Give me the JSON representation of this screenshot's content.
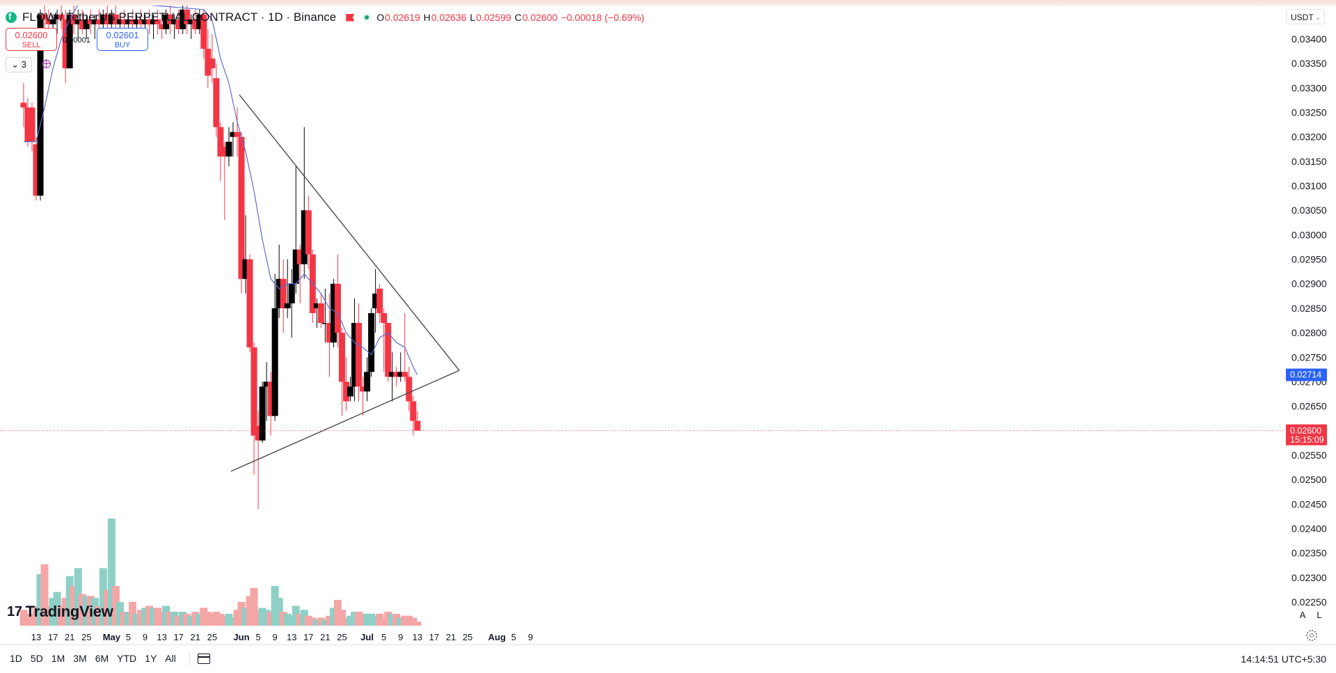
{
  "header": {
    "symbol": "FLOW / TetherUS PERPETUAL CONTRACT · 1D · Binance",
    "ohlc": {
      "o_label": "O",
      "o": "0.02619",
      "h_label": "H",
      "h": "0.02636",
      "l_label": "L",
      "l": "0.02599",
      "c_label": "C",
      "c": "0.02600",
      "change": "−0.00018 (−0.69%)"
    }
  },
  "trade": {
    "sell_price": "0.02600",
    "sell_label": "SELL",
    "spread": "0.00001",
    "buy_price": "0.02601",
    "buy_label": "BUY"
  },
  "indicator_count": "3",
  "currency": "USDT",
  "watermark": "TradingView",
  "axis_buttons": {
    "auto": "A",
    "log": "L"
  },
  "ranges": [
    "1D",
    "5D",
    "1M",
    "3M",
    "6M",
    "YTD",
    "1Y",
    "All"
  ],
  "clock": "14:14:51 UTC+5:30",
  "colors": {
    "up": "#000000",
    "down": "#f23645",
    "vol_up": "#8ecfc6",
    "vol_down": "#f4a6a6",
    "ma": "#5b6bd4"
  },
  "chart_data": {
    "type": "candlestick",
    "timeframe": "1D",
    "ylim": [
      0.0222,
      0.0343
    ],
    "y_ticks": [
      "0.02250",
      "0.02300",
      "0.02350",
      "0.02400",
      "0.02450",
      "0.02500",
      "0.02550",
      "0.02600",
      "0.02650",
      "0.02700",
      "0.02750",
      "0.02800",
      "0.02850",
      "0.02900",
      "0.02950",
      "0.03000",
      "0.03050",
      "0.03100",
      "0.03150",
      "0.03200",
      "0.03250",
      "0.03300",
      "0.03350",
      "0.03400"
    ],
    "x_ticks": [
      {
        "day": 0,
        "label": "13"
      },
      {
        "day": 4,
        "label": "17"
      },
      {
        "day": 8,
        "label": "21"
      },
      {
        "day": 12,
        "label": "25"
      },
      {
        "day": 18,
        "label": "May"
      },
      {
        "day": 22,
        "label": "5"
      },
      {
        "day": 26,
        "label": "9"
      },
      {
        "day": 30,
        "label": "13"
      },
      {
        "day": 34,
        "label": "17"
      },
      {
        "day": 38,
        "label": "21"
      },
      {
        "day": 42,
        "label": "25"
      },
      {
        "day": 49,
        "label": "Jun"
      },
      {
        "day": 53,
        "label": "5"
      },
      {
        "day": 57,
        "label": "9"
      },
      {
        "day": 61,
        "label": "13"
      },
      {
        "day": 65,
        "label": "17"
      },
      {
        "day": 69,
        "label": "21"
      },
      {
        "day": 73,
        "label": "25"
      },
      {
        "day": 79,
        "label": "Jul"
      },
      {
        "day": 83,
        "label": "5"
      },
      {
        "day": 87,
        "label": "9"
      },
      {
        "day": 91,
        "label": "13"
      },
      {
        "day": 95,
        "label": "17"
      },
      {
        "day": 99,
        "label": "21"
      },
      {
        "day": 103,
        "label": "25"
      },
      {
        "day": 110,
        "label": "Aug"
      },
      {
        "day": 114,
        "label": "5"
      },
      {
        "day": 118,
        "label": "9"
      }
    ],
    "candles": [
      {
        "d": -3,
        "o": 0.0327,
        "h": 0.0331,
        "l": 0.0322,
        "c": 0.0326,
        "v": 4
      },
      {
        "d": -2,
        "o": 0.0326,
        "h": 0.0328,
        "l": 0.0318,
        "c": 0.0319,
        "v": 3
      },
      {
        "d": -1,
        "o": 0.0326,
        "h": 0.0327,
        "l": 0.0317,
        "c": 0.0319,
        "v": 3
      },
      {
        "d": 0,
        "o": 0.03185,
        "h": 0.032,
        "l": 0.0307,
        "c": 0.0308,
        "v": 5
      },
      {
        "d": 1,
        "o": 0.0308,
        "h": 0.0346,
        "l": 0.0307,
        "c": 0.0345,
        "v": 13
      },
      {
        "d": 2,
        "o": 0.0345,
        "h": 0.035,
        "l": 0.034,
        "c": 0.0344,
        "v": 15.5
      },
      {
        "d": 3,
        "o": 0.0344,
        "h": 0.0346,
        "l": 0.034,
        "c": 0.0343,
        "v": 5
      },
      {
        "d": 4,
        "o": 0.0343,
        "h": 0.0345,
        "l": 0.034,
        "c": 0.0344,
        "v": 7
      },
      {
        "d": 5,
        "o": 0.0344,
        "h": 0.0346,
        "l": 0.0341,
        "c": 0.0345,
        "v": 8.5
      },
      {
        "d": 6,
        "o": 0.0345,
        "h": 0.0347,
        "l": 0.0342,
        "c": 0.0344,
        "v": 5
      },
      {
        "d": 7,
        "o": 0.0344,
        "h": 0.0346,
        "l": 0.0331,
        "c": 0.0334,
        "v": 7
      },
      {
        "d": 8,
        "o": 0.0334,
        "h": 0.0346,
        "l": 0.0334,
        "c": 0.0345,
        "v": 12.5
      },
      {
        "d": 9,
        "o": 0.0345,
        "h": 0.0347,
        "l": 0.0341,
        "c": 0.0343,
        "v": 10
      },
      {
        "d": 10,
        "o": 0.0343,
        "h": 0.0346,
        "l": 0.034,
        "c": 0.0344,
        "v": 14.5
      },
      {
        "d": 11,
        "o": 0.0344,
        "h": 0.0346,
        "l": 0.0341,
        "c": 0.0342,
        "v": 8
      },
      {
        "d": 12,
        "o": 0.0342,
        "h": 0.0345,
        "l": 0.034,
        "c": 0.0344,
        "v": 7.5
      },
      {
        "d": 13,
        "o": 0.0344,
        "h": 0.0346,
        "l": 0.0341,
        "c": 0.0343,
        "v": 7.5
      },
      {
        "d": 14,
        "o": 0.0343,
        "h": 0.0345,
        "l": 0.034,
        "c": 0.0344,
        "v": 7
      },
      {
        "d": 15,
        "o": 0.0344,
        "h": 0.0346,
        "l": 0.0341,
        "c": 0.0343,
        "v": 5
      },
      {
        "d": 16,
        "o": 0.0343,
        "h": 0.0346,
        "l": 0.034,
        "c": 0.0345,
        "v": 14.5
      },
      {
        "d": 17,
        "o": 0.0345,
        "h": 0.0347,
        "l": 0.0341,
        "c": 0.0343,
        "v": 9
      },
      {
        "d": 18,
        "o": 0.0343,
        "h": 0.0346,
        "l": 0.034,
        "c": 0.0345,
        "v": 27
      },
      {
        "d": 19,
        "o": 0.0345,
        "h": 0.0347,
        "l": 0.0341,
        "c": 0.0343,
        "v": 10
      },
      {
        "d": 20,
        "o": 0.0343,
        "h": 0.0345,
        "l": 0.034,
        "c": 0.0344,
        "v": 6
      },
      {
        "d": 21,
        "o": 0.0344,
        "h": 0.0346,
        "l": 0.0341,
        "c": 0.0343,
        "v": 3.5
      },
      {
        "d": 22,
        "o": 0.0343,
        "h": 0.0345,
        "l": 0.034,
        "c": 0.0344,
        "v": 3.5
      },
      {
        "d": 23,
        "o": 0.0344,
        "h": 0.0346,
        "l": 0.0341,
        "c": 0.0343,
        "v": 6
      },
      {
        "d": 24,
        "o": 0.0343,
        "h": 0.0345,
        "l": 0.034,
        "c": 0.0344,
        "v": 3
      },
      {
        "d": 25,
        "o": 0.0344,
        "h": 0.0346,
        "l": 0.0341,
        "c": 0.0343,
        "v": 4
      },
      {
        "d": 26,
        "o": 0.0343,
        "h": 0.0345,
        "l": 0.034,
        "c": 0.0344,
        "v": 4.5
      },
      {
        "d": 27,
        "o": 0.0344,
        "h": 0.0346,
        "l": 0.0341,
        "c": 0.0343,
        "v": 5
      },
      {
        "d": 28,
        "o": 0.0343,
        "h": 0.0345,
        "l": 0.034,
        "c": 0.0344,
        "v": 4.5
      },
      {
        "d": 29,
        "o": 0.0344,
        "h": 0.0346,
        "l": 0.0341,
        "c": 0.0343,
        "v": 4.5
      },
      {
        "d": 30,
        "o": 0.0343,
        "h": 0.0345,
        "l": 0.034,
        "c": 0.0342,
        "v": 3.5
      },
      {
        "d": 31,
        "o": 0.0342,
        "h": 0.0346,
        "l": 0.0341,
        "c": 0.0345,
        "v": 5
      },
      {
        "d": 32,
        "o": 0.0345,
        "h": 0.0347,
        "l": 0.0341,
        "c": 0.0343,
        "v": 3.5
      },
      {
        "d": 33,
        "o": 0.0343,
        "h": 0.0345,
        "l": 0.034,
        "c": 0.0344,
        "v": 3.5
      },
      {
        "d": 34,
        "o": 0.0344,
        "h": 0.0346,
        "l": 0.0341,
        "c": 0.0342,
        "v": 2.5
      },
      {
        "d": 35,
        "o": 0.0342,
        "h": 0.0348,
        "l": 0.0341,
        "c": 0.0346,
        "v": 3.5
      },
      {
        "d": 36,
        "o": 0.0346,
        "h": 0.0348,
        "l": 0.0341,
        "c": 0.0343,
        "v": 3
      },
      {
        "d": 37,
        "o": 0.0343,
        "h": 0.0345,
        "l": 0.034,
        "c": 0.0344,
        "v": 2.5
      },
      {
        "d": 38,
        "o": 0.0344,
        "h": 0.0346,
        "l": 0.0341,
        "c": 0.0342,
        "v": 3.5
      },
      {
        "d": 39,
        "o": 0.0342,
        "h": 0.0346,
        "l": 0.0341,
        "c": 0.0345,
        "v": 3
      },
      {
        "d": 40,
        "o": 0.0345,
        "h": 0.0346,
        "l": 0.0336,
        "c": 0.0338,
        "v": 4.5
      },
      {
        "d": 41,
        "o": 0.0338,
        "h": 0.0342,
        "l": 0.033,
        "c": 0.03325,
        "v": 3.5
      },
      {
        "d": 42,
        "o": 0.0336,
        "h": 0.0341,
        "l": 0.0331,
        "c": 0.0334,
        "v": 3
      },
      {
        "d": 43,
        "o": 0.0332,
        "h": 0.0335,
        "l": 0.032,
        "c": 0.0322,
        "v": 3.5
      },
      {
        "d": 44,
        "o": 0.0322,
        "h": 0.0323,
        "l": 0.0311,
        "c": 0.0316,
        "v": 3
      },
      {
        "d": 45,
        "o": 0.0318,
        "h": 0.0319,
        "l": 0.0303,
        "c": 0.0316,
        "v": 2.5
      },
      {
        "d": 46,
        "o": 0.0316,
        "h": 0.0322,
        "l": 0.0314,
        "c": 0.0319,
        "v": 3
      },
      {
        "d": 47,
        "o": 0.032,
        "h": 0.0323,
        "l": 0.0316,
        "c": 0.0321,
        "v": 2
      },
      {
        "d": 48,
        "o": 0.0321,
        "h": 0.0326,
        "l": 0.0316,
        "c": 0.032,
        "v": 4
      },
      {
        "d": 49,
        "o": 0.032,
        "h": 0.0321,
        "l": 0.0288,
        "c": 0.0291,
        "v": 6
      },
      {
        "d": 50,
        "o": 0.0291,
        "h": 0.0304,
        "l": 0.0288,
        "c": 0.0295,
        "v": 4.5
      },
      {
        "d": 51,
        "o": 0.0295,
        "h": 0.0296,
        "l": 0.0276,
        "c": 0.0277,
        "v": 7.5
      },
      {
        "d": 52,
        "o": 0.0277,
        "h": 0.0278,
        "l": 0.0251,
        "c": 0.0259,
        "v": 9.5
      },
      {
        "d": 53,
        "o": 0.0261,
        "h": 0.0264,
        "l": 0.0244,
        "c": 0.0258,
        "v": 4
      },
      {
        "d": 54,
        "o": 0.0258,
        "h": 0.027,
        "l": 0.02575,
        "c": 0.0269,
        "v": 4.5
      },
      {
        "d": 55,
        "o": 0.0269,
        "h": 0.0274,
        "l": 0.0262,
        "c": 0.027,
        "v": 4
      },
      {
        "d": 56,
        "o": 0.027,
        "h": 0.0272,
        "l": 0.0259,
        "c": 0.0263,
        "v": 3.5
      },
      {
        "d": 57,
        "o": 0.0263,
        "h": 0.0292,
        "l": 0.0262,
        "c": 0.0285,
        "v": 10
      },
      {
        "d": 58,
        "o": 0.0285,
        "h": 0.0298,
        "l": 0.0283,
        "c": 0.0291,
        "v": 7
      },
      {
        "d": 59,
        "o": 0.0291,
        "h": 0.0295,
        "l": 0.028,
        "c": 0.0285,
        "v": 3.5
      },
      {
        "d": 60,
        "o": 0.0285,
        "h": 0.0295,
        "l": 0.0283,
        "c": 0.0286,
        "v": 3
      },
      {
        "d": 61,
        "o": 0.0286,
        "h": 0.0293,
        "l": 0.0279,
        "c": 0.029,
        "v": 2.5
      },
      {
        "d": 62,
        "o": 0.029,
        "h": 0.0314,
        "l": 0.0288,
        "c": 0.0297,
        "v": 5
      },
      {
        "d": 63,
        "o": 0.0297,
        "h": 0.0298,
        "l": 0.0286,
        "c": 0.0294,
        "v": 3
      },
      {
        "d": 64,
        "o": 0.0294,
        "h": 0.0322,
        "l": 0.0291,
        "c": 0.0305,
        "v": 4
      },
      {
        "d": 65,
        "o": 0.0305,
        "h": 0.0308,
        "l": 0.0293,
        "c": 0.0296,
        "v": 2.5
      },
      {
        "d": 66,
        "o": 0.0296,
        "h": 0.0297,
        "l": 0.0282,
        "c": 0.0284,
        "v": 2
      },
      {
        "d": 67,
        "o": 0.0285,
        "h": 0.0287,
        "l": 0.0281,
        "c": 0.0286,
        "v": 1.5
      },
      {
        "d": 68,
        "o": 0.0286,
        "h": 0.0288,
        "l": 0.0281,
        "c": 0.0282,
        "v": 2
      },
      {
        "d": 69,
        "o": 0.0282,
        "h": 0.0289,
        "l": 0.0278,
        "c": 0.0282,
        "v": 1.5
      },
      {
        "d": 70,
        "o": 0.0282,
        "h": 0.0288,
        "l": 0.0271,
        "c": 0.0278,
        "v": 2.5
      },
      {
        "d": 71,
        "o": 0.0278,
        "h": 0.0291,
        "l": 0.0277,
        "c": 0.029,
        "v": 4.5
      },
      {
        "d": 72,
        "o": 0.029,
        "h": 0.0296,
        "l": 0.0277,
        "c": 0.028,
        "v": 6.5
      },
      {
        "d": 73,
        "o": 0.028,
        "h": 0.0281,
        "l": 0.0263,
        "c": 0.027,
        "v": 4
      },
      {
        "d": 74,
        "o": 0.027,
        "h": 0.0275,
        "l": 0.0264,
        "c": 0.0266,
        "v": 2
      },
      {
        "d": 75,
        "o": 0.0267,
        "h": 0.0271,
        "l": 0.0266,
        "c": 0.0269,
        "v": 2.5
      },
      {
        "d": 76,
        "o": 0.0269,
        "h": 0.0287,
        "l": 0.0266,
        "c": 0.0282,
        "v": 3.5
      },
      {
        "d": 77,
        "o": 0.0282,
        "h": 0.0286,
        "l": 0.0266,
        "c": 0.0269,
        "v": 3.5
      },
      {
        "d": 78,
        "o": 0.0269,
        "h": 0.0271,
        "l": 0.0263,
        "c": 0.0268,
        "v": 3
      },
      {
        "d": 79,
        "o": 0.0268,
        "h": 0.0275,
        "l": 0.0266,
        "c": 0.0272,
        "v": 3
      },
      {
        "d": 80,
        "o": 0.0272,
        "h": 0.0285,
        "l": 0.0271,
        "c": 0.0284,
        "v": 3
      },
      {
        "d": 81,
        "o": 0.0285,
        "h": 0.0293,
        "l": 0.028,
        "c": 0.0288,
        "v": 2.5
      },
      {
        "d": 82,
        "o": 0.0289,
        "h": 0.029,
        "l": 0.0282,
        "c": 0.0284,
        "v": 3
      },
      {
        "d": 83,
        "o": 0.0284,
        "h": 0.0285,
        "l": 0.0272,
        "c": 0.0282,
        "v": 2
      },
      {
        "d": 84,
        "o": 0.0282,
        "h": 0.0282,
        "l": 0.027,
        "c": 0.0271,
        "v": 3.5
      },
      {
        "d": 85,
        "o": 0.0271,
        "h": 0.0276,
        "l": 0.0266,
        "c": 0.0272,
        "v": 3
      },
      {
        "d": 86,
        "o": 0.0272,
        "h": 0.0273,
        "l": 0.0269,
        "c": 0.0271,
        "v": 3
      },
      {
        "d": 87,
        "o": 0.0271,
        "h": 0.0276,
        "l": 0.027,
        "c": 0.0272,
        "v": 2
      },
      {
        "d": 88,
        "o": 0.0272,
        "h": 0.0284,
        "l": 0.027,
        "c": 0.0271,
        "v": 2.5
      },
      {
        "d": 89,
        "o": 0.0271,
        "h": 0.0273,
        "l": 0.0264,
        "c": 0.0266,
        "v": 2.5
      },
      {
        "d": 90,
        "o": 0.0266,
        "h": 0.0267,
        "l": 0.0259,
        "c": 0.0262,
        "v": 2
      },
      {
        "d": 91,
        "o": 0.0262,
        "h": 0.0264,
        "l": 0.026,
        "c": 0.026,
        "v": 1
      }
    ],
    "moving_average": {
      "name": "",
      "points": [
        [
          -3,
          0.0319
        ],
        [
          0,
          0.0319
        ],
        [
          2,
          0.0326
        ],
        [
          4,
          0.0334
        ],
        [
          6,
          0.034
        ],
        [
          8,
          0.0344
        ],
        [
          10,
          0.0347
        ],
        [
          12,
          0.0348
        ],
        [
          40,
          0.0346
        ],
        [
          42,
          0.0344
        ],
        [
          44,
          0.0336
        ],
        [
          46,
          0.0331
        ],
        [
          48,
          0.0323
        ],
        [
          50,
          0.0317
        ],
        [
          52,
          0.0309
        ],
        [
          54,
          0.0299
        ],
        [
          56,
          0.0291
        ],
        [
          58,
          0.0289
        ],
        [
          60,
          0.029
        ],
        [
          62,
          0.029
        ],
        [
          64,
          0.0292
        ],
        [
          66,
          0.029
        ],
        [
          68,
          0.0288
        ],
        [
          70,
          0.0285
        ],
        [
          72,
          0.0284
        ],
        [
          74,
          0.028
        ],
        [
          76,
          0.0278
        ],
        [
          78,
          0.0277
        ],
        [
          80,
          0.02755
        ],
        [
          82,
          0.0279
        ],
        [
          84,
          0.028
        ],
        [
          86,
          0.0278
        ],
        [
          88,
          0.0277
        ],
        [
          90,
          0.0273
        ],
        [
          91,
          0.02714
        ]
      ]
    },
    "trendlines": [
      {
        "from": [
          48.5,
          0.03286
        ],
        "to": [
          101,
          0.02723
        ]
      },
      {
        "from": [
          46.5,
          0.02517
        ],
        "to": [
          101,
          0.02723
        ]
      }
    ],
    "price_labels": [
      {
        "price": 0.02714,
        "text": "0.02714",
        "color": "#2962ff"
      },
      {
        "price": 0.026,
        "text": "0.02600",
        "sub": "15:15:09",
        "color": "#f23645"
      }
    ]
  }
}
